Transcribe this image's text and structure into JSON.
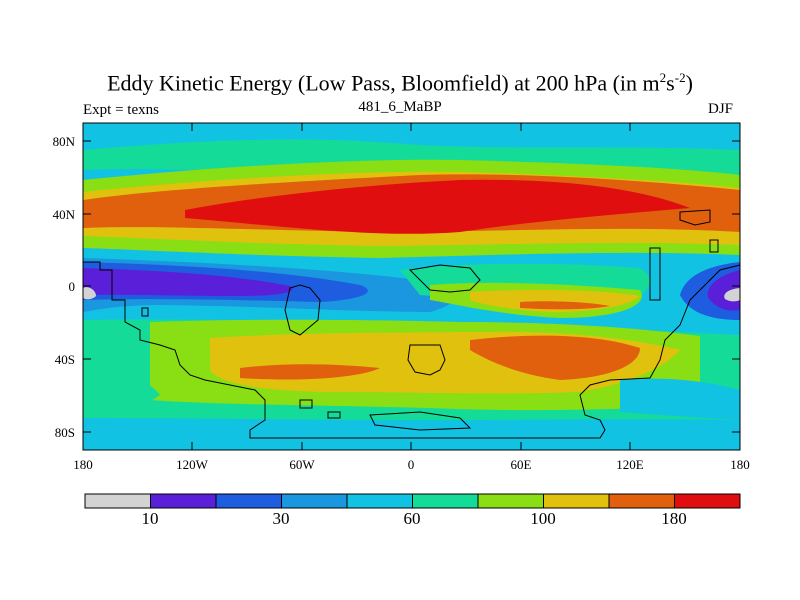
{
  "title": {
    "main": "Eddy Kinetic Energy (Low Pass, Bloomfield) at 200 hPa (in m",
    "sup1": "2",
    "mid": "s",
    "sup2": "-2",
    "end": ")"
  },
  "subtitle": "481_6_MaBP",
  "left_label": "Expt = texns",
  "right_label": "DJF",
  "map": {
    "lat_ticks": [
      "80N",
      "40N",
      "0",
      "40S",
      "80S"
    ],
    "lon_ticks": [
      "180",
      "120W",
      "60W",
      "0",
      "60E",
      "120E",
      "180"
    ]
  },
  "colorbar": {
    "colors": [
      "#d3d3d3",
      "#5a1fd8",
      "#1e5de0",
      "#1a97de",
      "#12c2e2",
      "#14dc98",
      "#8ade14",
      "#e0c20e",
      "#e0600e",
      "#e00e0e"
    ],
    "labels": [
      "10",
      "30",
      "60",
      "100",
      "180"
    ]
  }
}
